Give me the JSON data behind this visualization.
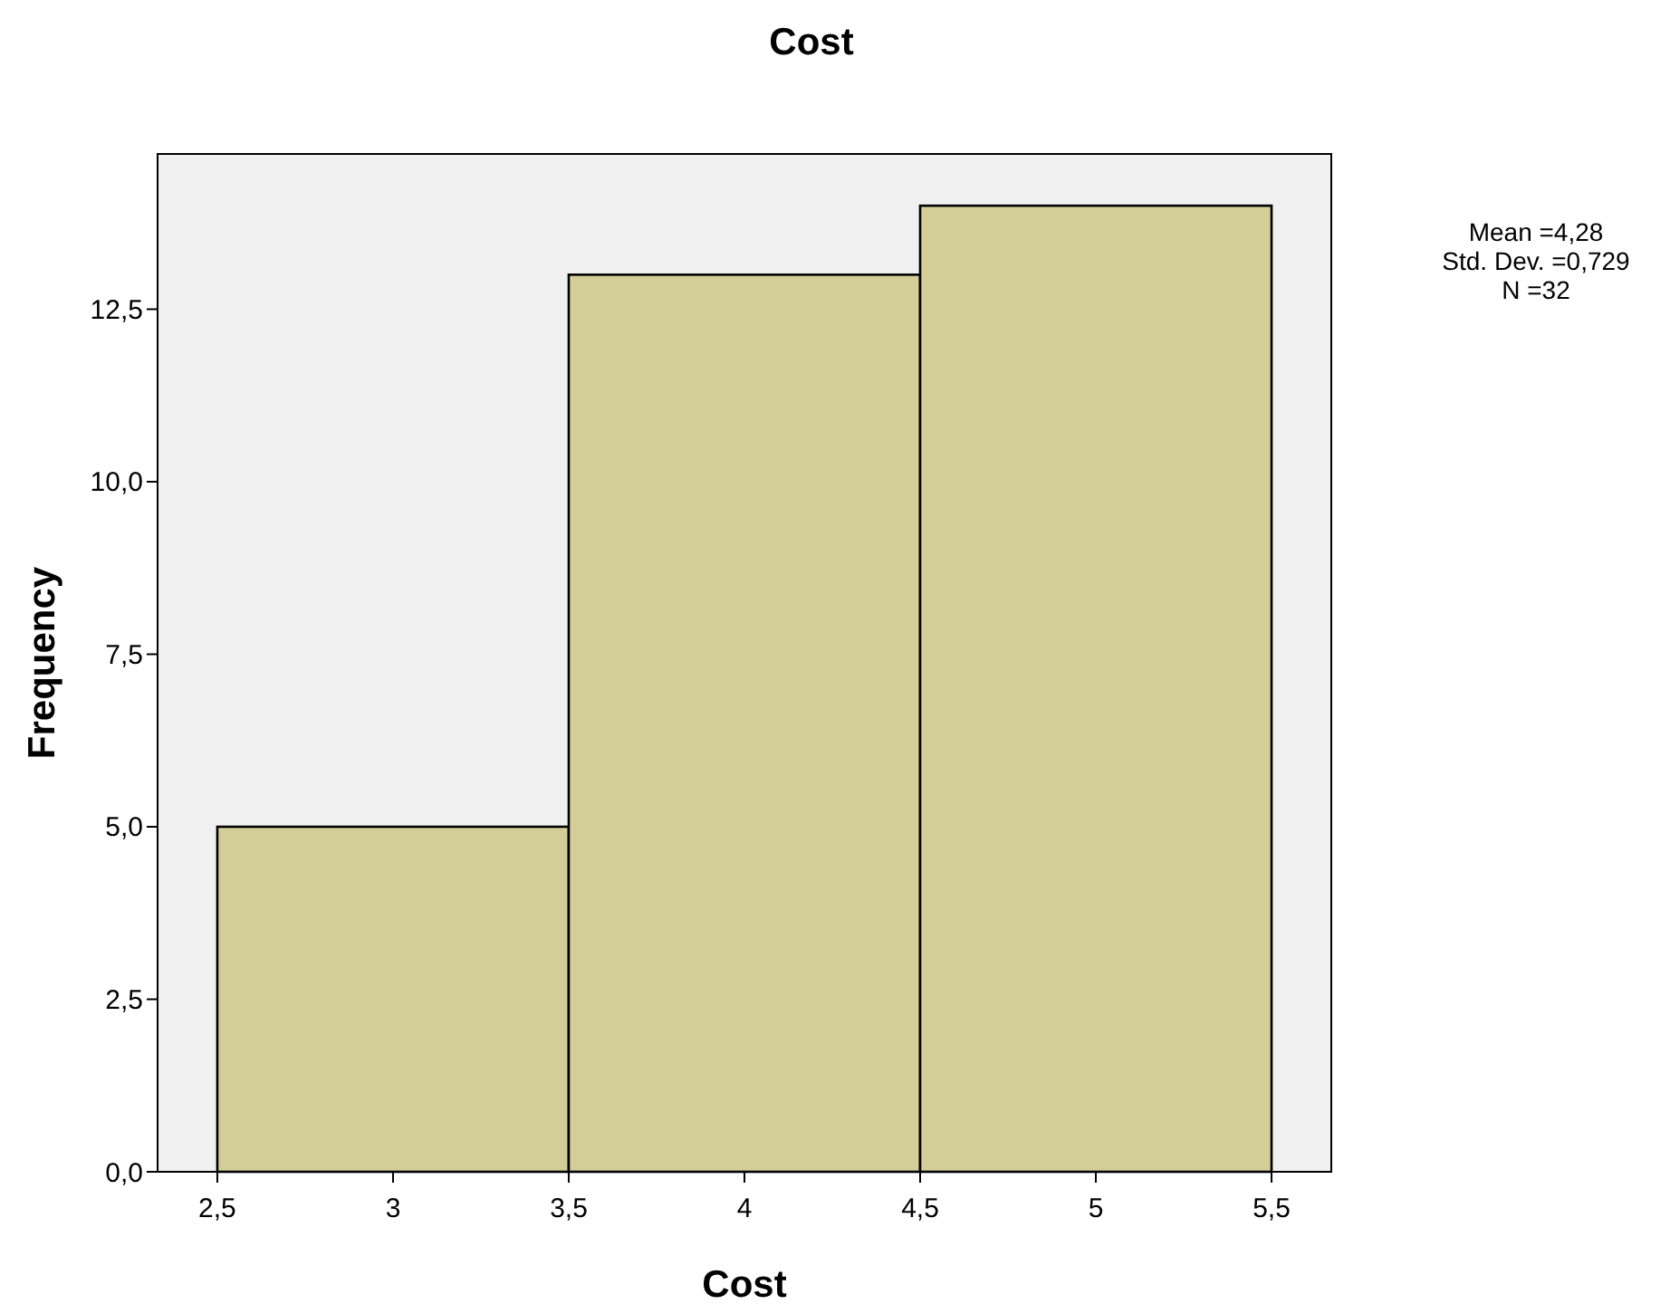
{
  "chart_data": {
    "type": "histogram",
    "title": "Cost",
    "xlabel": "Cost",
    "ylabel": "Frequency",
    "bins": [
      2.5,
      3.5,
      4.5,
      5.5
    ],
    "values": [
      5,
      13,
      14
    ],
    "color": "#d3ce97",
    "xlim": [
      2.33,
      5.67
    ],
    "ylim": [
      0,
      14.75
    ],
    "xticks": [
      {
        "value": 2.5,
        "label": "2,5"
      },
      3,
      {
        "value": 3.5,
        "label": "3,5"
      },
      4,
      {
        "value": 4.5,
        "label": "4,5"
      },
      5,
      {
        "value": 5.5,
        "label": "5,5"
      }
    ],
    "yticks": [
      {
        "value": 0,
        "label": "0,0"
      },
      {
        "value": 2.5,
        "label": "2,5"
      },
      {
        "value": 5,
        "label": "5,0"
      },
      {
        "value": 7.5,
        "label": "7,5"
      },
      {
        "value": 10,
        "label": "10,0"
      },
      {
        "value": 12.5,
        "label": "12,5"
      }
    ],
    "grid": false,
    "annotations": [
      "Mean =4,28",
      "Std. Dev. =0,729",
      "N =32"
    ]
  }
}
